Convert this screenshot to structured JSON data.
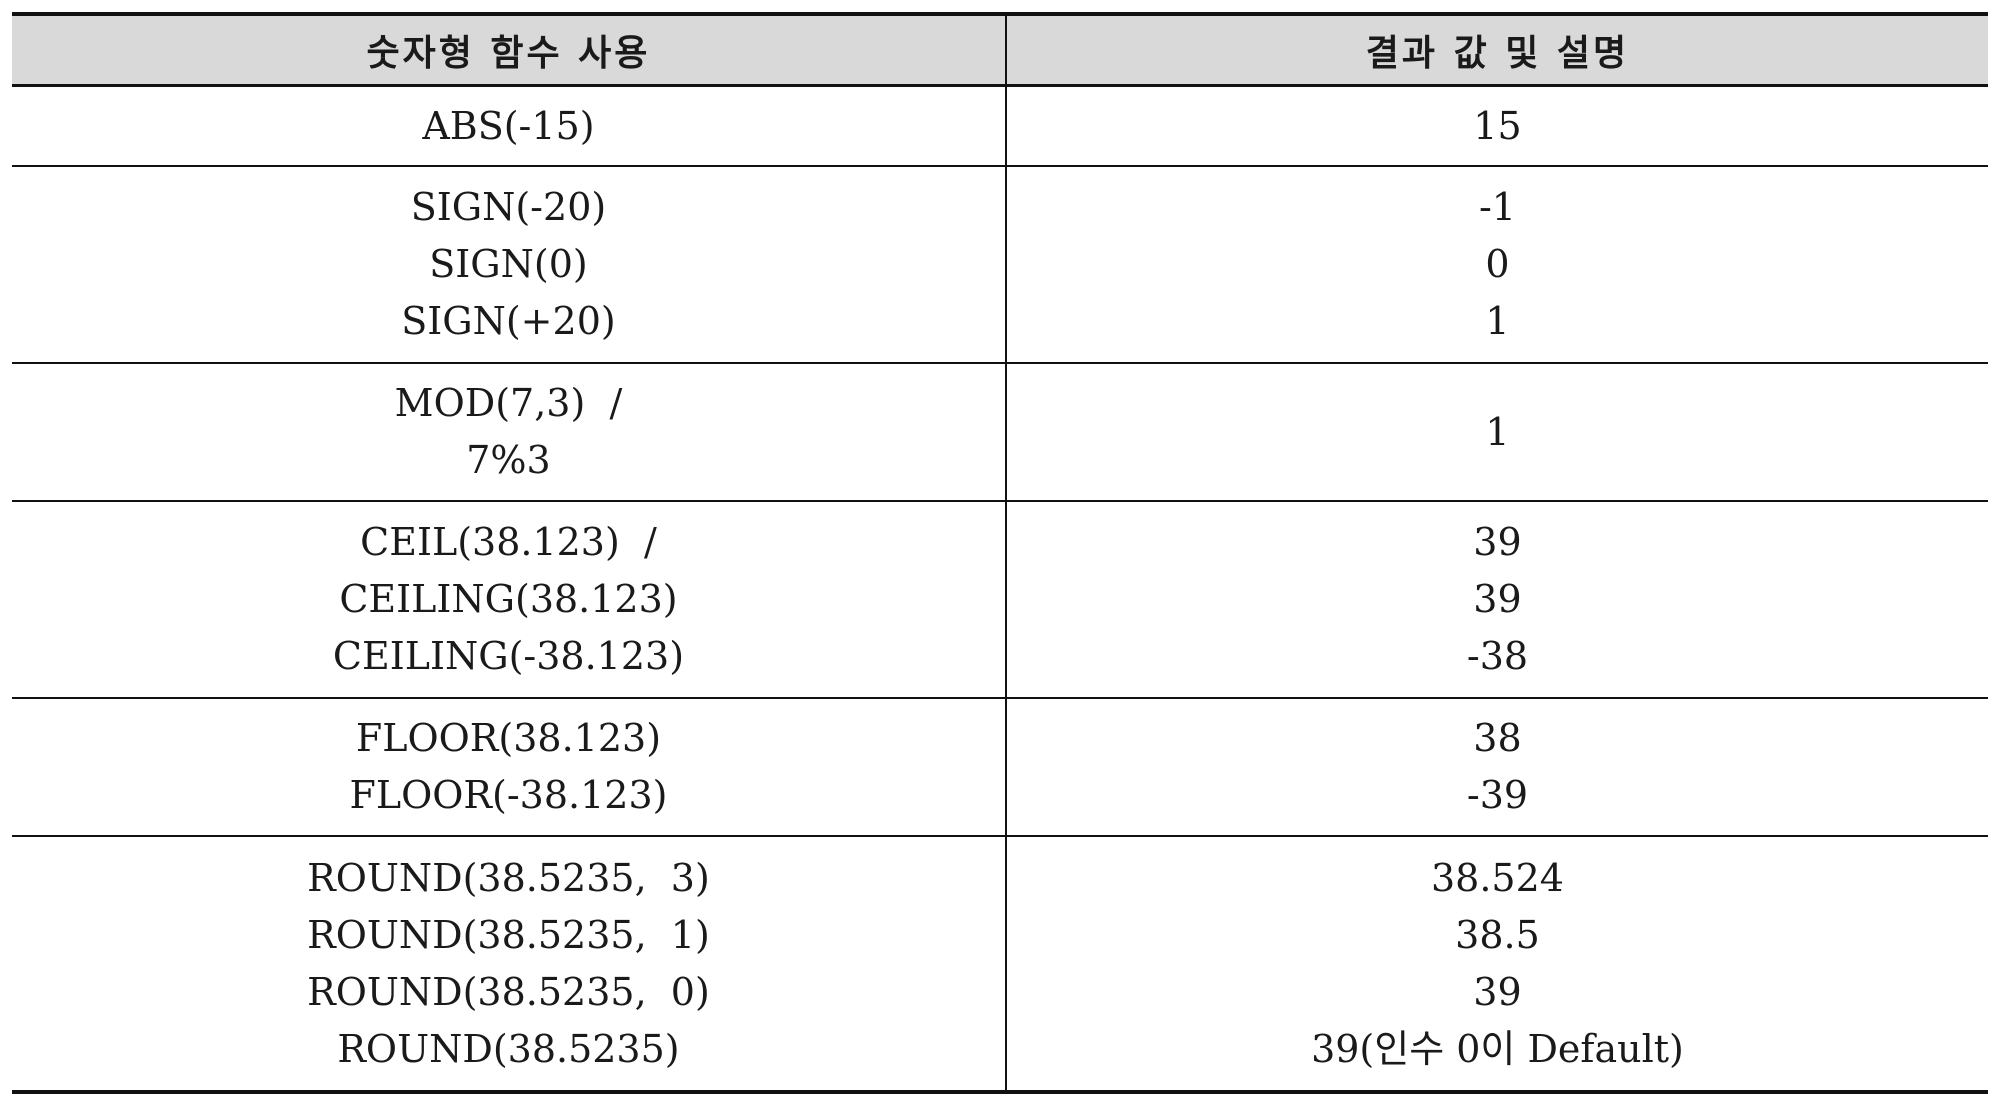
{
  "header": {
    "function_col": "숫자형 함수 사용",
    "result_col": "결과 값 및 설명"
  },
  "rows": [
    {
      "functions": [
        "ABS(-15)"
      ],
      "results": [
        "15"
      ]
    },
    {
      "functions": [
        "SIGN(-20)",
        "SIGN(0)",
        "SIGN(+20)"
      ],
      "results": [
        "-1",
        "0",
        "1"
      ]
    },
    {
      "functions": [
        "MOD(7,3)  /",
        "7%3"
      ],
      "results": [
        "1"
      ]
    },
    {
      "functions": [
        "CEIL(38.123)  /",
        "CEILING(38.123)",
        "CEILING(-38.123)"
      ],
      "results": [
        "39",
        "39",
        "-38"
      ]
    },
    {
      "functions": [
        "FLOOR(38.123)",
        "FLOOR(-38.123)"
      ],
      "results": [
        "38",
        "-39"
      ]
    },
    {
      "functions": [
        "ROUND(38.5235,  3)",
        "ROUND(38.5235,  1)",
        "ROUND(38.5235,  0)",
        "ROUND(38.5235)"
      ],
      "results": [
        "38.524",
        "38.5",
        "39",
        "39(인수 0이 Default)"
      ]
    }
  ]
}
